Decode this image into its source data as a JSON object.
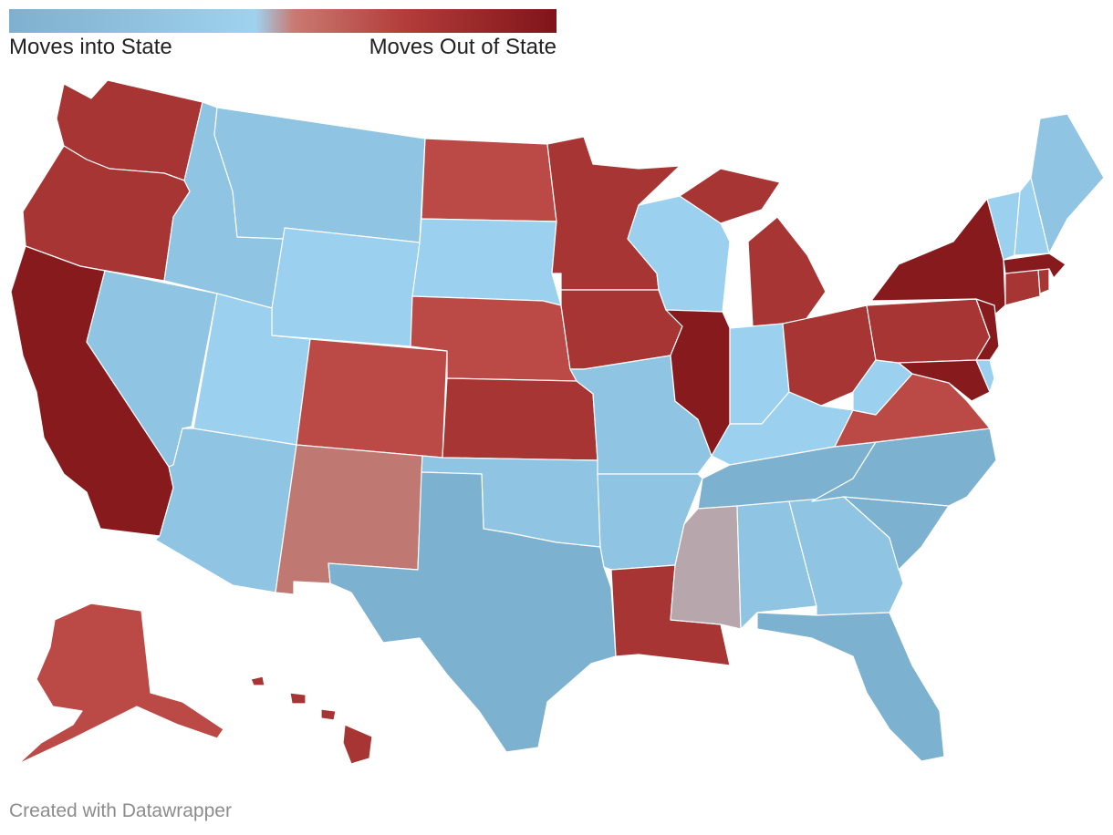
{
  "legend": {
    "left_label": "Moves into State",
    "right_label": "Moves Out of State",
    "gradient_stops": [
      "#7fb0cf",
      "#9fd2ee",
      "#c97a72",
      "#b33d3a",
      "#7f1419"
    ]
  },
  "colors": {
    "into_strong": "#7cb1cf",
    "into_mid": "#8fc4e2",
    "into_light": "#9bd1ee",
    "out_light": "#bb4a46",
    "out_mid": "#a63533",
    "out_strong": "#861a1d",
    "neutral_red": "#c07873",
    "neutral": "#b8a6ad"
  },
  "credit": "Created with Datawrapper",
  "states": [
    {
      "id": "WA",
      "category": "out_mid"
    },
    {
      "id": "OR",
      "category": "out_mid"
    },
    {
      "id": "CA",
      "category": "out_strong"
    },
    {
      "id": "NV",
      "category": "into_mid"
    },
    {
      "id": "ID",
      "category": "into_mid"
    },
    {
      "id": "MT",
      "category": "into_mid"
    },
    {
      "id": "WY",
      "category": "into_light"
    },
    {
      "id": "UT",
      "category": "into_light"
    },
    {
      "id": "AZ",
      "category": "into_mid"
    },
    {
      "id": "CO",
      "category": "out_light"
    },
    {
      "id": "NM",
      "category": "neutral_red"
    },
    {
      "id": "ND",
      "category": "out_light"
    },
    {
      "id": "SD",
      "category": "into_light"
    },
    {
      "id": "NE",
      "category": "out_light"
    },
    {
      "id": "KS",
      "category": "out_mid"
    },
    {
      "id": "OK",
      "category": "into_mid"
    },
    {
      "id": "TX",
      "category": "into_strong"
    },
    {
      "id": "MN",
      "category": "out_mid"
    },
    {
      "id": "IA",
      "category": "out_mid"
    },
    {
      "id": "MO",
      "category": "into_mid"
    },
    {
      "id": "AR",
      "category": "into_mid"
    },
    {
      "id": "LA",
      "category": "out_mid"
    },
    {
      "id": "WI",
      "category": "into_light"
    },
    {
      "id": "IL",
      "category": "out_strong"
    },
    {
      "id": "MI",
      "category": "out_mid"
    },
    {
      "id": "IN",
      "category": "into_light"
    },
    {
      "id": "OH",
      "category": "out_mid"
    },
    {
      "id": "KY",
      "category": "into_light"
    },
    {
      "id": "TN",
      "category": "into_strong"
    },
    {
      "id": "MS",
      "category": "neutral"
    },
    {
      "id": "AL",
      "category": "into_mid"
    },
    {
      "id": "GA",
      "category": "into_mid"
    },
    {
      "id": "FL",
      "category": "into_strong"
    },
    {
      "id": "SC",
      "category": "into_strong"
    },
    {
      "id": "NC",
      "category": "into_strong"
    },
    {
      "id": "VA",
      "category": "out_light"
    },
    {
      "id": "WV",
      "category": "into_light"
    },
    {
      "id": "PA",
      "category": "out_mid"
    },
    {
      "id": "NY",
      "category": "out_strong"
    },
    {
      "id": "NJ",
      "category": "out_strong"
    },
    {
      "id": "MD",
      "category": "out_strong"
    },
    {
      "id": "DE",
      "category": "into_light"
    },
    {
      "id": "CT",
      "category": "out_mid"
    },
    {
      "id": "RI",
      "category": "out_mid"
    },
    {
      "id": "MA",
      "category": "out_strong"
    },
    {
      "id": "VT",
      "category": "into_light"
    },
    {
      "id": "NH",
      "category": "into_light"
    },
    {
      "id": "ME",
      "category": "into_mid"
    },
    {
      "id": "AK",
      "category": "out_light"
    },
    {
      "id": "HI",
      "category": "out_mid"
    }
  ]
}
